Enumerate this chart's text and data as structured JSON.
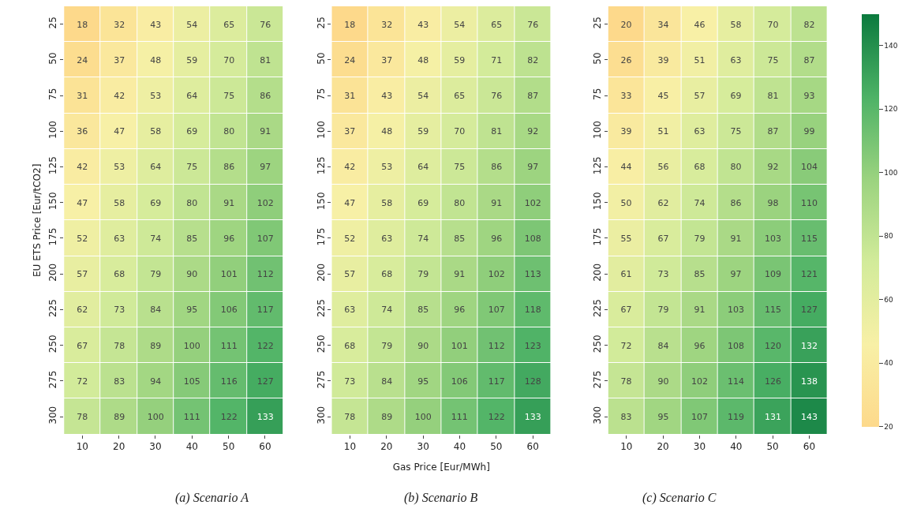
{
  "chart_data": [
    {
      "type": "heatmap",
      "ylabel": "EU ETS Price [Eur/tCO2]",
      "categories": [
        "10",
        "20",
        "30",
        "40",
        "50",
        "60"
      ],
      "y_categories": [
        "25",
        "50",
        "75",
        "100",
        "125",
        "150",
        "175",
        "200",
        "225",
        "250",
        "275",
        "300"
      ],
      "cells": [
        [
          18,
          32,
          43,
          54,
          65,
          76
        ],
        [
          24,
          37,
          48,
          59,
          70,
          81
        ],
        [
          31,
          42,
          53,
          64,
          75,
          86
        ],
        [
          36,
          47,
          58,
          69,
          80,
          91
        ],
        [
          42,
          53,
          64,
          75,
          86,
          97
        ],
        [
          47,
          58,
          69,
          80,
          91,
          102
        ],
        [
          52,
          63,
          74,
          85,
          96,
          107
        ],
        [
          57,
          68,
          79,
          90,
          101,
          112
        ],
        [
          62,
          73,
          84,
          95,
          106,
          117
        ],
        [
          67,
          78,
          89,
          100,
          111,
          122
        ],
        [
          72,
          83,
          94,
          105,
          116,
          127
        ],
        [
          78,
          89,
          100,
          111,
          122,
          133
        ]
      ],
      "data_labels": true,
      "annotations": [
        "(a) Scenario A"
      ]
    },
    {
      "type": "heatmap",
      "xlabel": "Gas Price [Eur/MWh]",
      "categories": [
        "10",
        "20",
        "30",
        "40",
        "50",
        "60"
      ],
      "y_categories": [
        "25",
        "50",
        "75",
        "100",
        "125",
        "150",
        "175",
        "200",
        "225",
        "250",
        "275",
        "300"
      ],
      "cells": [
        [
          18,
          32,
          43,
          54,
          65,
          76
        ],
        [
          24,
          37,
          48,
          59,
          71,
          82
        ],
        [
          31,
          43,
          54,
          65,
          76,
          87
        ],
        [
          37,
          48,
          59,
          70,
          81,
          92
        ],
        [
          42,
          53,
          64,
          75,
          86,
          97
        ],
        [
          47,
          58,
          69,
          80,
          91,
          102
        ],
        [
          52,
          63,
          74,
          85,
          96,
          108
        ],
        [
          57,
          68,
          79,
          91,
          102,
          113
        ],
        [
          63,
          74,
          85,
          96,
          107,
          118
        ],
        [
          68,
          79,
          90,
          101,
          112,
          123
        ],
        [
          73,
          84,
          95,
          106,
          117,
          128
        ],
        [
          78,
          89,
          100,
          111,
          122,
          133
        ]
      ],
      "data_labels": true,
      "annotations": [
        "(b) Scenario B"
      ]
    },
    {
      "type": "heatmap",
      "categories": [
        "10",
        "20",
        "30",
        "40",
        "50",
        "60"
      ],
      "y_categories": [
        "25",
        "50",
        "75",
        "100",
        "125",
        "150",
        "175",
        "200",
        "225",
        "250",
        "275",
        "300"
      ],
      "cells": [
        [
          20,
          34,
          46,
          58,
          70,
          82
        ],
        [
          26,
          39,
          51,
          63,
          75,
          87
        ],
        [
          33,
          45,
          57,
          69,
          81,
          93
        ],
        [
          39,
          51,
          63,
          75,
          87,
          99
        ],
        [
          44,
          56,
          68,
          80,
          92,
          104
        ],
        [
          50,
          62,
          74,
          86,
          98,
          110
        ],
        [
          55,
          67,
          79,
          91,
          103,
          115
        ],
        [
          61,
          73,
          85,
          97,
          109,
          121
        ],
        [
          67,
          79,
          91,
          103,
          115,
          127
        ],
        [
          72,
          84,
          96,
          108,
          120,
          132
        ],
        [
          78,
          90,
          102,
          114,
          126,
          138
        ],
        [
          83,
          95,
          107,
          119,
          131,
          143
        ]
      ],
      "clim": [
        20,
        150
      ],
      "cticks": [
        20,
        40,
        60,
        80,
        100,
        120,
        140
      ],
      "data_labels": true,
      "annotations": [
        "(c) Scenario C"
      ]
    }
  ]
}
